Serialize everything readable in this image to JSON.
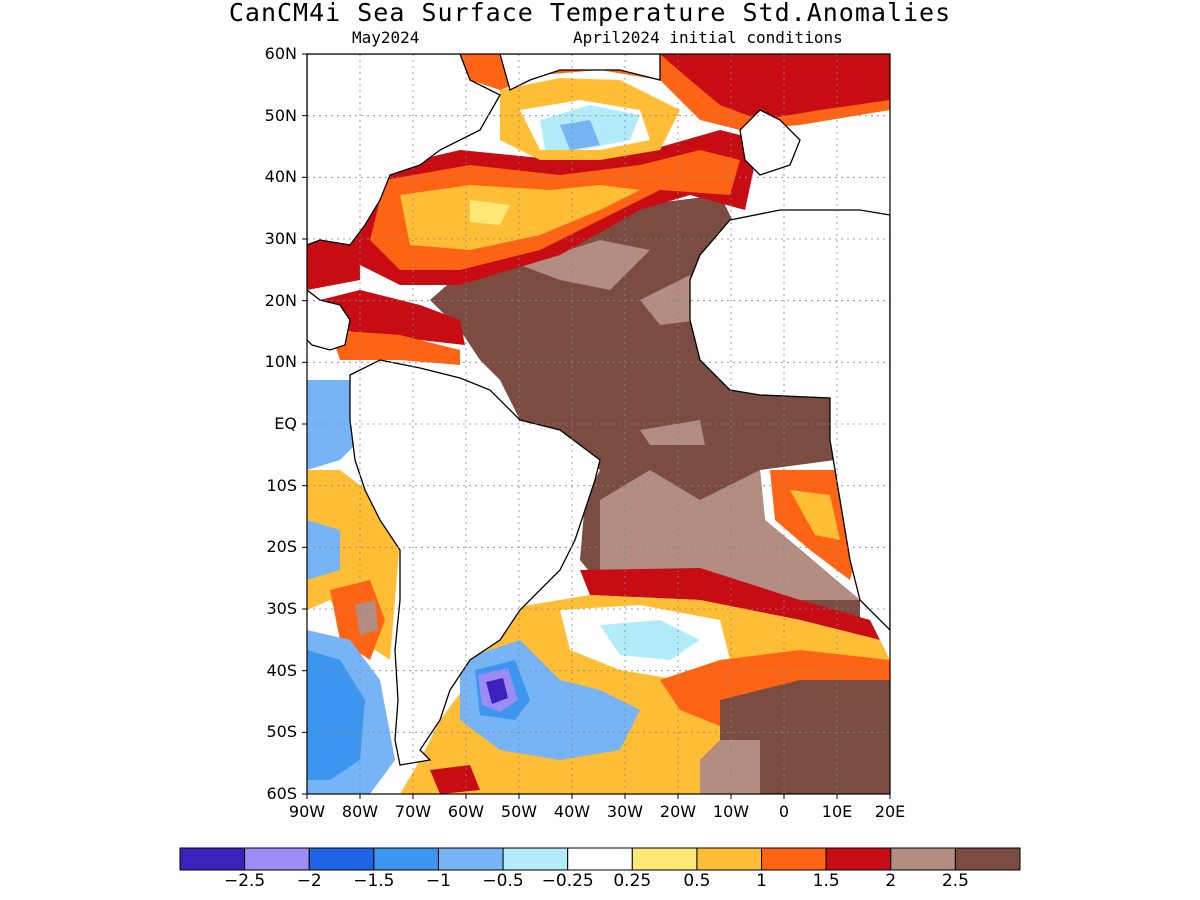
{
  "title": "CanCM4i Sea Surface Temperature Std.Anomalies",
  "subtitle_left": "May2024",
  "subtitle_right": "April2024 initial conditions",
  "map": {
    "lat_labels": [
      "60N",
      "50N",
      "40N",
      "30N",
      "20N",
      "10N",
      "EQ",
      "10S",
      "20S",
      "30S",
      "40S",
      "50S",
      "60S"
    ],
    "lon_labels": [
      "90W",
      "80W",
      "70W",
      "60W",
      "50W",
      "40W",
      "30W",
      "20W",
      "10W",
      "0",
      "10E",
      "20E"
    ],
    "lat_range": [
      -60,
      60
    ],
    "lon_range": [
      -90,
      20
    ],
    "grid": "dotted"
  },
  "colorbar": {
    "colors": [
      "#3b22bd",
      "#9d8cf5",
      "#1e64e6",
      "#3c96f0",
      "#76b4f5",
      "#b2ecfa",
      "#ffffff",
      "#ffe878",
      "#ffbe36",
      "#ff6414",
      "#c80c14",
      "#b38c82",
      "#7a4c42"
    ],
    "labels": [
      "−2.5",
      "−2",
      "−1.5",
      "−1",
      "−0.5",
      "−0.25",
      "0.25",
      "0.5",
      "1",
      "1.5",
      "2",
      "2.5"
    ]
  }
}
